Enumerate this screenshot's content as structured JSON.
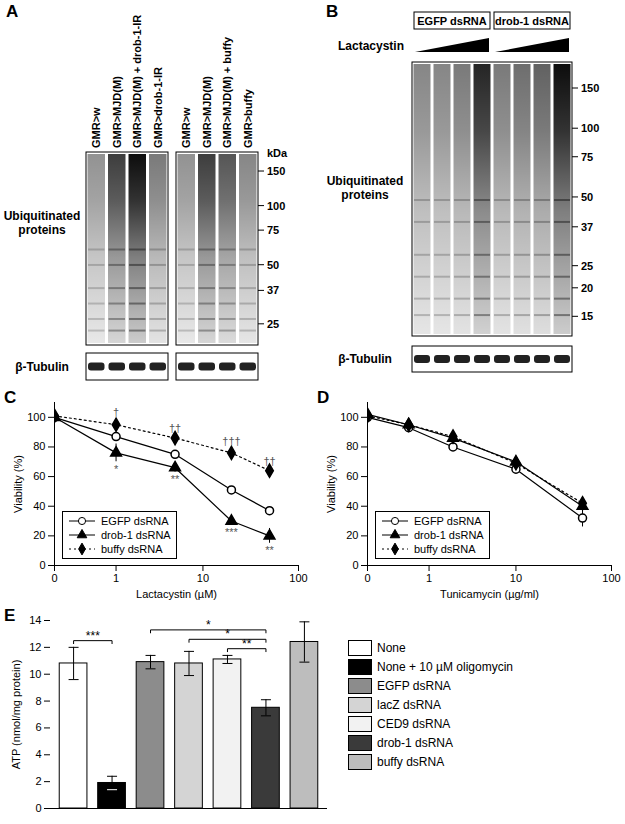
{
  "chart_data": [
    {
      "panel": "A",
      "type": "blot",
      "band_label": "Ubiquitinated proteins",
      "loading_label": "β-Tubulin",
      "marker_unit": "kDa",
      "markers": [
        150,
        100,
        75,
        50,
        37,
        25
      ],
      "blots": [
        {
          "lanes": [
            "GMR>w",
            "GMR>MJD(M)",
            "GMR>MJD(M) + drob-1-IR",
            "GMR>drob-1-IR"
          ],
          "signal": [
            0.45,
            0.8,
            1.0,
            0.55
          ]
        },
        {
          "lanes": [
            "GMR>w",
            "GMR>MJD(M)",
            "GMR>MJD(M) + buffy",
            "GMR>buffy"
          ],
          "signal": [
            0.45,
            0.8,
            0.7,
            0.5
          ]
        }
      ]
    },
    {
      "panel": "B",
      "type": "blot",
      "band_label": "Ubiquitinated proteins",
      "loading_label": "β-Tubulin",
      "treatment": "Lactacystin",
      "markers": [
        150,
        100,
        75,
        50,
        37,
        25,
        20,
        15
      ],
      "groups": [
        {
          "name": "EGFP dsRNA",
          "signal": [
            0.5,
            0.5,
            0.55,
            0.9
          ]
        },
        {
          "name": "drob-1 dsRNA",
          "signal": [
            0.55,
            0.6,
            0.65,
            1.0
          ]
        }
      ]
    },
    {
      "panel": "C",
      "type": "line",
      "x_label": "Lactacystin (µM)",
      "y_label": "Viability (%)",
      "log": "x",
      "x": [
        0,
        1,
        5,
        20,
        50
      ],
      "xlim": [
        0,
        100
      ],
      "xticks": [
        0,
        1,
        10,
        100
      ],
      "ylim": [
        0,
        110
      ],
      "yticks": [
        0,
        20,
        40,
        60,
        80,
        100
      ],
      "legend": "bottom-left",
      "series": [
        {
          "name": "EGFP dsRNA",
          "color": "#000000",
          "marker": "circle-open",
          "line_style": "solid",
          "values": [
            100,
            87,
            75,
            51,
            37
          ],
          "errors": [
            5,
            3,
            2,
            2,
            2
          ]
        },
        {
          "name": "drob-1 dsRNA",
          "color": "#000000",
          "marker": "triangle",
          "line_style": "solid",
          "values": [
            100,
            76,
            66,
            30,
            20
          ],
          "errors": [
            8,
            6,
            3,
            3,
            5
          ],
          "significance": [
            null,
            "*",
            "**",
            "***",
            "**"
          ]
        },
        {
          "name": "buffy dsRNA",
          "color": "#000000",
          "marker": "diamond",
          "line_style": "dotted",
          "values": [
            101,
            95,
            86,
            76,
            64
          ],
          "errors": [
            4,
            4,
            2,
            3,
            2
          ],
          "significance": [
            null,
            "†",
            "††",
            "†††",
            "††"
          ]
        }
      ]
    },
    {
      "panel": "D",
      "type": "line",
      "x_label": "Tunicamycin (µg/ml)",
      "y_label": "Viability (%)",
      "log": "x",
      "x": [
        0,
        0.5,
        2,
        10,
        50
      ],
      "xlim": [
        0,
        100
      ],
      "xticks": [
        0,
        1,
        10,
        100
      ],
      "ylim": [
        0,
        110
      ],
      "yticks": [
        0,
        20,
        40,
        60,
        80,
        100
      ],
      "legend": "bottom-left",
      "series": [
        {
          "name": "EGFP dsRNA",
          "color": "#000000",
          "marker": "circle-open",
          "line_style": "solid",
          "values": [
            100,
            93,
            80,
            65,
            32
          ],
          "errors": [
            3,
            2,
            2,
            3,
            6
          ]
        },
        {
          "name": "drob-1 dsRNA",
          "color": "#000000",
          "marker": "triangle",
          "line_style": "solid",
          "values": [
            102,
            95,
            86,
            70,
            40
          ],
          "errors": [
            3,
            2,
            2,
            3,
            4
          ]
        },
        {
          "name": "buffy dsRNA",
          "color": "#000000",
          "marker": "diamond",
          "line_style": "dotted",
          "values": [
            101,
            95,
            87,
            69,
            42
          ],
          "errors": [
            3,
            2,
            2,
            3,
            4
          ]
        }
      ]
    },
    {
      "panel": "E",
      "type": "bar",
      "y_label": "ATP (nmol/mg protein)",
      "categories": [
        "None",
        "None + 10 µM oligomycin",
        "EGFP dsRNA",
        "lacZ dsRNA",
        "CED9 dsRNA",
        "drob-1 dsRNA",
        "buffy dsRNA"
      ],
      "values": [
        10.8,
        1.9,
        10.9,
        10.8,
        11.1,
        7.5,
        12.4
      ],
      "errors": [
        1.2,
        0.5,
        0.5,
        0.9,
        0.3,
        0.6,
        1.5
      ],
      "colors": [
        "#ffffff",
        "#000000",
        "#8c8c8c",
        "#d4d4d4",
        "#f2f2f2",
        "#3a3a3a",
        "#bdbdbd"
      ],
      "ylim": [
        0,
        14
      ],
      "yticks": [
        0,
        2,
        4,
        6,
        8,
        10,
        12,
        14
      ],
      "tick_labels": "y",
      "legend": "right",
      "comparisons": [
        {
          "from": "None",
          "to": "None + 10 µM oligomycin",
          "label": "***"
        },
        {
          "from": "CED9 dsRNA",
          "to": "drob-1 dsRNA",
          "label": "**"
        },
        {
          "from": "lacZ dsRNA",
          "to": "drob-1 dsRNA",
          "label": "*"
        },
        {
          "from": "EGFP dsRNA",
          "to": "drob-1 dsRNA",
          "label": "*"
        }
      ]
    }
  ]
}
